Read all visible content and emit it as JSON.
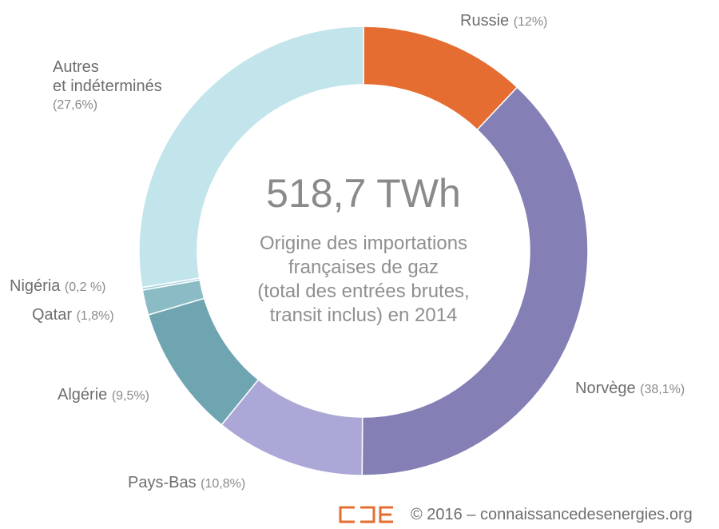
{
  "chart_data": {
    "type": "pie",
    "style": "donut",
    "center_value": "518,7 TWh",
    "center_caption": [
      "Origine des importations",
      "françaises de gaz",
      "(total des entrées brutes,",
      "transit inclus) en 2014"
    ],
    "slices": [
      {
        "name": "Russie",
        "value": 12.0,
        "pct_label": "(12%)",
        "color": "#e66d31"
      },
      {
        "name": "Norvège",
        "value": 38.1,
        "pct_label": "(38,1%)",
        "color": "#847fb5"
      },
      {
        "name": "Pays-Bas",
        "value": 10.8,
        "pct_label": "(10,8%)",
        "color": "#aba8d7"
      },
      {
        "name": "Algérie",
        "value": 9.5,
        "pct_label": "(9,5%)",
        "color": "#6ea5b0"
      },
      {
        "name": "Qatar",
        "value": 1.8,
        "pct_label": "(1,8%)",
        "color": "#8bbcc6"
      },
      {
        "name": "Nigéria",
        "value": 0.2,
        "pct_label": "(0,2 %)",
        "color": "#a7d3de"
      },
      {
        "name_lines": [
          "Autres",
          "et indéterminés"
        ],
        "value": 27.6,
        "pct_label": "(27,6%)",
        "color": "#c2e4eb"
      }
    ]
  },
  "footer": {
    "copyright": "© 2016 – connaissancedesenergies.org",
    "logo_color": "#e66d31"
  }
}
